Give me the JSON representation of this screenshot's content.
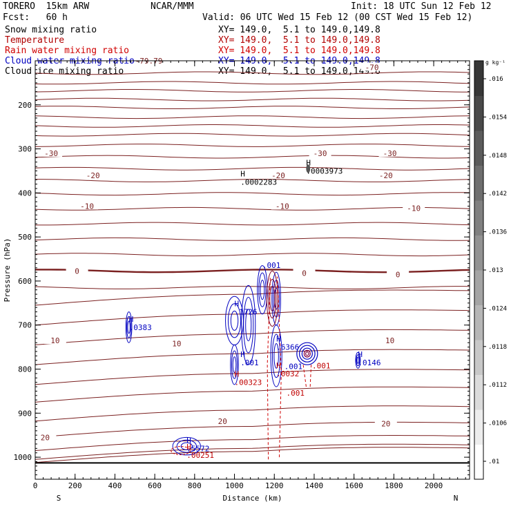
{
  "header": {
    "model": "TORERO  15km ARW",
    "org": "NCAR/MMM",
    "init": "Init: 18 UTC Sun 12 Feb 12",
    "fcst": "Fcst:   60 h",
    "valid": "Valid: 06 UTC Wed 15 Feb 12 (00 CST Wed 15 Feb 12)"
  },
  "fields": [
    {
      "name": "Snow mixing ratio",
      "xy": "XY= 149.0,  5.1 to 149.0,149.8",
      "color": "#000000"
    },
    {
      "name": "Temperature",
      "xy": "XY= 149.0,  5.1 to 149.0,149.8",
      "color": "#b00000"
    },
    {
      "name": "Rain water mixing ratio",
      "xy": "XY= 149.0,  5.1 to 149.0,149.8",
      "color": "#d00000"
    },
    {
      "name": "Cloud water mixing ratio",
      "xy": "XY= 149.0,  5.1 to 149.0,149.8",
      "color": "#0000c0"
    },
    {
      "name": "Cloud ice mixing ratio",
      "xy": "XY= 149.0,  5.1 to 149.0,149.8",
      "color": "#000000"
    }
  ],
  "chart_data": {
    "type": "contour",
    "xlabel": "Distance (km)",
    "ylabel": "Pressure (hPa)",
    "xlim": [
      0,
      2180
    ],
    "ylim": [
      1050,
      100
    ],
    "xticks": [
      "0",
      "200",
      "400",
      "600",
      "800",
      "1000",
      "1200",
      "1400",
      "1600",
      "1800",
      "2000"
    ],
    "yticks": [
      "200",
      "300",
      "400",
      "500",
      "600",
      "700",
      "800",
      "900",
      "1000"
    ],
    "direction_left": "S",
    "direction_right": "N",
    "colorbar": {
      "unit": "g kg⁻¹",
      "levels": [
        ".01",
        ".0106",
        ".0112",
        ".0118",
        ".0124",
        ".013",
        ".0136",
        ".0142",
        ".0148",
        ".0154",
        ".016"
      ]
    },
    "temperature_labels": [
      {
        "text": "-79.79",
        "x": 570,
        "p": 100
      },
      {
        "text": "-70",
        "x": 1690,
        "p": 115
      },
      {
        "text": "-30",
        "x": 80,
        "p": 310
      },
      {
        "text": "-30",
        "x": 1430,
        "p": 310
      },
      {
        "text": "-30",
        "x": 1780,
        "p": 310
      },
      {
        "text": "-20",
        "x": 290,
        "p": 360
      },
      {
        "text": "-20",
        "x": 1220,
        "p": 360
      },
      {
        "text": "-20",
        "x": 1760,
        "p": 360
      },
      {
        "text": "-10",
        "x": 260,
        "p": 430
      },
      {
        "text": "-10",
        "x": 1240,
        "p": 430
      },
      {
        "text": "-10",
        "x": 1900,
        "p": 435
      },
      {
        "text": "0",
        "x": 210,
        "p": 577
      },
      {
        "text": "0",
        "x": 1350,
        "p": 582
      },
      {
        "text": "0",
        "x": 1820,
        "p": 585
      },
      {
        "text": "10",
        "x": 100,
        "p": 735
      },
      {
        "text": "10",
        "x": 710,
        "p": 742
      },
      {
        "text": "10",
        "x": 1780,
        "p": 735
      },
      {
        "text": "20",
        "x": 940,
        "p": 918
      },
      {
        "text": "20",
        "x": 1760,
        "p": 924
      },
      {
        "text": "20",
        "x": 50,
        "p": 955
      }
    ],
    "extrema_labels": [
      {
        "mark": "H",
        "value": ".0002283",
        "x": 1030,
        "p": 375,
        "color": "#000000"
      },
      {
        "mark": "H",
        "value": ".0003973",
        "x": 1360,
        "p": 350,
        "color": "#000000"
      },
      {
        "mark": "H",
        "value": ".0383",
        "x": 470,
        "p": 705,
        "color": "#0000c0"
      },
      {
        "mark": "H",
        "value": ".1726",
        "x": 1000,
        "p": 670,
        "color": "#0000c0"
      },
      {
        "mark": "H",
        "value": ".6366",
        "x": 1210,
        "p": 750,
        "color": "#0000c0"
      },
      {
        "mark": "H",
        "value": ".0146",
        "x": 1620,
        "p": 785,
        "color": "#0000c0"
      },
      {
        "mark": "H",
        "value": ".001",
        "x": 1030,
        "p": 785,
        "color": "#0000c0"
      },
      {
        "mark": "H",
        "value": ".00323",
        "x": 1000,
        "p": 830,
        "color": "#c00000"
      },
      {
        "mark": "H",
        "value": ".0032",
        "x": 1210,
        "p": 810,
        "color": "#c00000"
      },
      {
        "mark": "H",
        "value": ".5572",
        "x": 760,
        "p": 980,
        "color": "#0000c0"
      },
      {
        "mark": "H",
        "value": ".00251",
        "x": 760,
        "p": 995,
        "color": "#c00000"
      }
    ],
    "value_labels": [
      {
        "text": ".001",
        "x": 1140,
        "p": 570,
        "color": "#0000c0"
      },
      {
        "text": ".001",
        "x": 1250,
        "p": 800,
        "color": "#0000c0"
      },
      {
        "text": ".001",
        "x": 1390,
        "p": 798,
        "color": "#c00000"
      },
      {
        "text": ".001",
        "x": 1260,
        "p": 860,
        "color": "#c00000"
      }
    ]
  }
}
